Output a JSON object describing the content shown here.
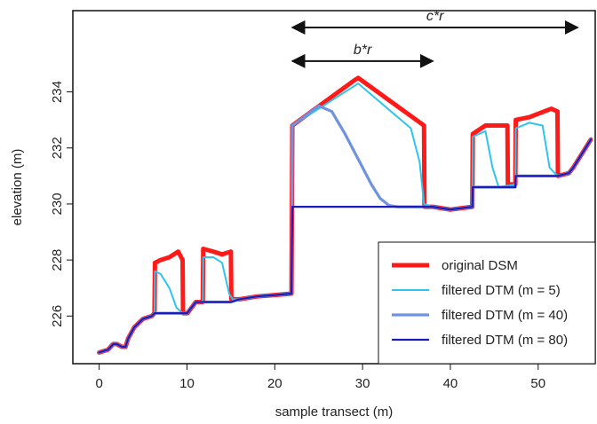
{
  "chart_data": {
    "type": "line",
    "xlabel": "sample transect (m)",
    "ylabel": "elevation (m)",
    "xlim": [
      -3,
      56.5
    ],
    "ylim": [
      224.3,
      236.9
    ],
    "xticks": [
      0,
      10,
      20,
      30,
      40,
      50
    ],
    "yticks": [
      226,
      228,
      230,
      232,
      234
    ],
    "grid": false,
    "legend": {
      "placement": "bottom-right",
      "entries": [
        {
          "label": "original DSM",
          "color": "#ff1a1a"
        },
        {
          "label": "filtered DTM (m = 5)",
          "color": "#2fc4ee"
        },
        {
          "label": "filtered DTM (m = 40)",
          "color": "#6f93e0"
        },
        {
          "label": "filtered DTM (m = 80)",
          "color": "#1c1cb8"
        }
      ]
    },
    "annotations": [
      {
        "label": "c*r",
        "from": 22,
        "to": 54.5,
        "y": 236.3
      },
      {
        "label": "b*r",
        "from": 22,
        "to": 38,
        "y": 235.1
      }
    ],
    "series": [
      {
        "name": "original DSM",
        "color": "#ff1a1a",
        "x": [
          0,
          1,
          1.6,
          2,
          2.6,
          3,
          3.3,
          4,
          5,
          6,
          6.3,
          6.35,
          7,
          8,
          9,
          9.5,
          9.55,
          10,
          10.05,
          11,
          11.8,
          11.85,
          13,
          14,
          15,
          15.05,
          16,
          18,
          20,
          21.9,
          22,
          29,
          29.5,
          37,
          37.05,
          38,
          40,
          42.5,
          42.55,
          44,
          46.5,
          46.55,
          47.4,
          47.45,
          49,
          51.5,
          52.2,
          52.25,
          53.5,
          54,
          56
        ],
        "y": [
          224.7,
          224.8,
          225.0,
          225.0,
          224.9,
          224.9,
          225.2,
          225.6,
          225.9,
          226.0,
          226.1,
          227.9,
          228.0,
          228.1,
          228.3,
          228.0,
          226.1,
          226.1,
          226.1,
          226.5,
          226.5,
          228.4,
          228.3,
          228.2,
          228.3,
          226.6,
          226.6,
          226.7,
          226.75,
          226.8,
          232.8,
          234.4,
          234.5,
          232.8,
          229.9,
          229.9,
          229.8,
          229.9,
          232.5,
          232.8,
          232.8,
          230.7,
          230.7,
          233.0,
          233.1,
          233.4,
          233.3,
          231.0,
          231.1,
          231.3,
          232.3
        ]
      },
      {
        "name": "filtered DTM (m = 5)",
        "color": "#2fc4ee",
        "x": [
          0,
          1,
          1.6,
          2,
          2.6,
          3,
          3.3,
          4,
          5,
          6,
          6.3,
          6.35,
          7,
          8,
          8.8,
          9.5,
          10,
          11,
          11.8,
          11.85,
          13,
          14,
          14.8,
          15.2,
          16,
          18,
          20,
          21.9,
          22,
          29,
          29.5,
          35.5,
          36.5,
          37,
          38,
          40,
          42.5,
          42.55,
          44,
          44.8,
          45.5,
          47.4,
          47.45,
          49,
          50.5,
          51.3,
          52.2,
          53.5,
          54,
          56
        ],
        "y": [
          224.7,
          224.8,
          225.0,
          225.0,
          224.9,
          224.9,
          225.2,
          225.6,
          225.9,
          226.0,
          226.1,
          227.6,
          227.5,
          227.0,
          226.3,
          226.1,
          226.1,
          226.5,
          226.5,
          228.1,
          228.1,
          227.9,
          226.8,
          226.6,
          226.6,
          226.7,
          226.75,
          226.8,
          232.8,
          234.2,
          234.3,
          232.7,
          231.5,
          230.0,
          229.9,
          229.8,
          229.9,
          232.4,
          232.6,
          231.3,
          230.6,
          230.7,
          232.7,
          232.9,
          232.8,
          231.3,
          231.0,
          231.1,
          231.3,
          232.3
        ]
      },
      {
        "name": "filtered DTM (m = 40)",
        "color": "#6f93e0",
        "x": [
          0,
          1,
          1.6,
          2,
          2.6,
          3,
          3.3,
          4,
          5,
          6,
          6.3,
          10,
          11,
          11.8,
          15,
          16,
          18,
          20,
          21.9,
          22,
          25,
          26.5,
          28,
          29.5,
          31,
          32,
          33,
          34,
          36,
          38,
          40,
          42.5,
          42.55,
          47.4,
          47.45,
          52.2,
          53.5,
          54,
          56
        ],
        "y": [
          224.7,
          224.8,
          225.0,
          225.0,
          224.9,
          224.9,
          225.2,
          225.6,
          225.9,
          226.0,
          226.1,
          226.1,
          226.5,
          226.5,
          226.5,
          226.6,
          226.7,
          226.75,
          226.8,
          232.8,
          233.5,
          233.3,
          232.5,
          231.6,
          230.7,
          230.2,
          229.95,
          229.9,
          229.9,
          229.9,
          229.8,
          229.9,
          230.6,
          230.6,
          231.0,
          231.0,
          231.1,
          231.3,
          232.3
        ]
      },
      {
        "name": "filtered DTM (m = 80)",
        "color": "#1c1cb8",
        "x": [
          0,
          1,
          1.6,
          2,
          2.6,
          3,
          3.3,
          4,
          5,
          6,
          6.3,
          10,
          11,
          11.8,
          15,
          16,
          18,
          20,
          21.9,
          22,
          30,
          38,
          40,
          42.5,
          42.55,
          47.4,
          47.45,
          52.2,
          53.5,
          54,
          56
        ],
        "y": [
          224.7,
          224.8,
          225.0,
          225.0,
          224.9,
          224.9,
          225.2,
          225.6,
          225.9,
          226.0,
          226.1,
          226.1,
          226.5,
          226.5,
          226.5,
          226.6,
          226.7,
          226.75,
          226.8,
          229.9,
          229.9,
          229.9,
          229.8,
          229.9,
          230.6,
          230.6,
          231.0,
          231.0,
          231.1,
          231.3,
          232.3
        ]
      }
    ]
  }
}
